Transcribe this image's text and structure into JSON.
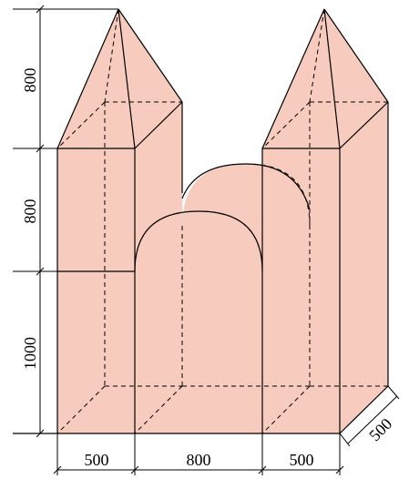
{
  "colors": {
    "fill": "#f7cbbd",
    "line": "#000000"
  },
  "dimensions": {
    "heights": [
      "800",
      "800",
      "1000"
    ],
    "widths": [
      "500",
      "800",
      "500"
    ],
    "depth": "500"
  }
}
